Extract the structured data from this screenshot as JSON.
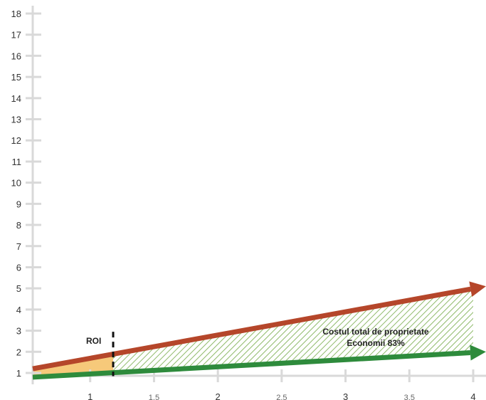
{
  "chart_data": {
    "type": "line",
    "title": "",
    "xlabel": "",
    "ylabel": "",
    "xlim": [
      0.55,
      4.05
    ],
    "ylim": [
      0.8,
      18
    ],
    "yticks": [
      1,
      2,
      3,
      4,
      5,
      6,
      7,
      8,
      9,
      10,
      11,
      12,
      13,
      14,
      15,
      16,
      17,
      18
    ],
    "xticks": [
      {
        "value": 1,
        "label": "1",
        "major": true
      },
      {
        "value": 1.5,
        "label": "1.5",
        "major": false
      },
      {
        "value": 2,
        "label": "2",
        "major": true
      },
      {
        "value": 2.5,
        "label": "2.5",
        "major": false
      },
      {
        "value": 3,
        "label": "3",
        "major": true
      },
      {
        "value": 3.5,
        "label": "3.5",
        "major": false
      },
      {
        "value": 4,
        "label": "4",
        "major": true
      }
    ],
    "grid": false,
    "legend": "none",
    "series": [
      {
        "color": "#b5462a",
        "x": [
          0.55,
          4.1
        ],
        "y": [
          1.2,
          5.1
        ]
      },
      {
        "color": "#2e8b3c",
        "x": [
          0.55,
          4.1
        ],
        "y": [
          0.8,
          2.0
        ]
      }
    ],
    "roi_x": 1.18,
    "roi_fill_color": "#f6c97a",
    "savings_hatch_color": "#8fba6a",
    "annotations": {
      "roi": "ROI",
      "tco_line1": "Costul total de proprietate",
      "tco_line2": "Economii 83%"
    }
  }
}
